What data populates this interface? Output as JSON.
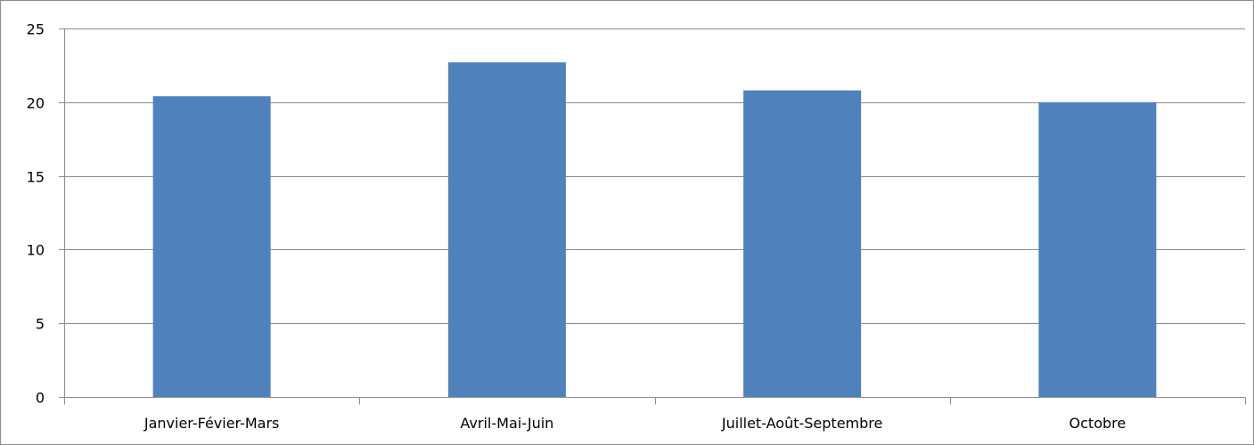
{
  "chart_data": {
    "type": "bar",
    "title": "",
    "xlabel": "",
    "ylabel": "",
    "categories": [
      "Janvier-Févier-Mars",
      "Avril-Mai-Juin",
      "Juillet-Août-Septembre",
      "Octobre"
    ],
    "values": [
      20.4,
      22.7,
      20.8,
      20.0
    ],
    "ylim": [
      0,
      25
    ],
    "yticks": [
      0,
      5,
      10,
      15,
      20,
      25
    ],
    "grid": true,
    "legend": "none",
    "bar_color": "#4f81bd",
    "grid_color": "#8c8c8c"
  }
}
